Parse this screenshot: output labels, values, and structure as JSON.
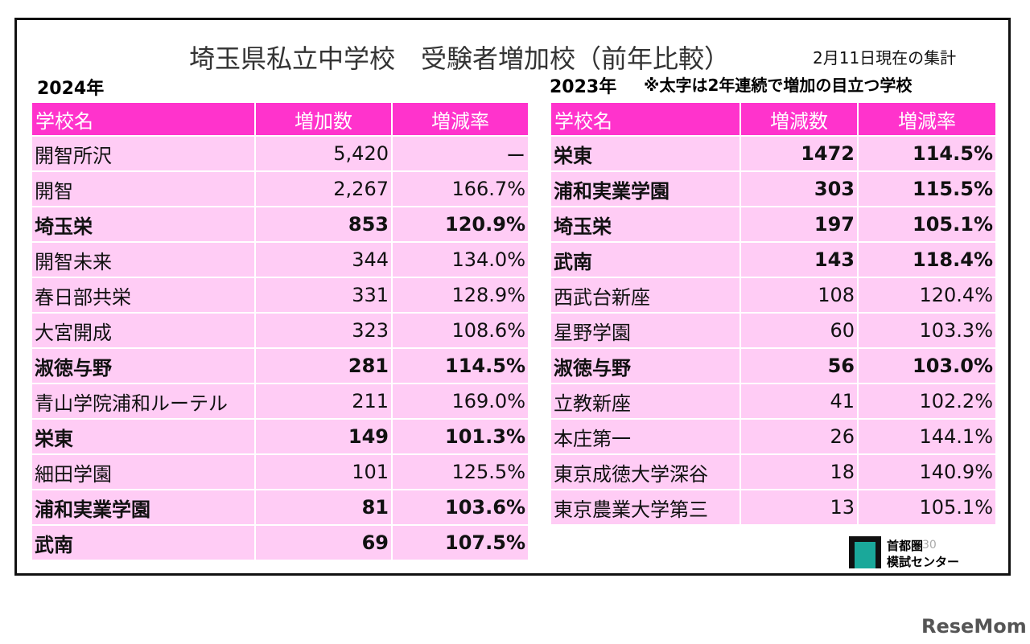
{
  "header": {
    "title": "埼玉県私立中学校　受験者増加校（前年比較）",
    "date_note": "2月11日現在の集計",
    "note": "※太字は2年連続で増加の目立つ学校"
  },
  "left_table": {
    "label": "2024年",
    "headers": [
      "学校名",
      "増加数",
      "増減率"
    ],
    "rows": [
      {
        "cells": [
          "開智所沢",
          "5,420",
          "ー"
        ],
        "bold": false
      },
      {
        "cells": [
          "開智",
          "2,267",
          "166.7%"
        ],
        "bold": false
      },
      {
        "cells": [
          "埼玉栄",
          "853",
          "120.9%"
        ],
        "bold": true
      },
      {
        "cells": [
          "開智未来",
          "344",
          "134.0%"
        ],
        "bold": false
      },
      {
        "cells": [
          "春日部共栄",
          "331",
          "128.9%"
        ],
        "bold": false
      },
      {
        "cells": [
          "大宮開成",
          "323",
          "108.6%"
        ],
        "bold": false
      },
      {
        "cells": [
          "淑徳与野",
          "281",
          "114.5%"
        ],
        "bold": true
      },
      {
        "cells": [
          "青山学院浦和ルーテル",
          "211",
          "169.0%"
        ],
        "bold": false
      },
      {
        "cells": [
          "栄東",
          "149",
          "101.3%"
        ],
        "bold": true
      },
      {
        "cells": [
          "細田学園",
          "101",
          "125.5%"
        ],
        "bold": false
      },
      {
        "cells": [
          "浦和実業学園",
          "81",
          "103.6%"
        ],
        "bold": true
      },
      {
        "cells": [
          "武南",
          "69",
          "107.5%"
        ],
        "bold": true
      }
    ]
  },
  "right_table": {
    "label": "2023年",
    "headers": [
      "学校名",
      "増減数",
      "増減率"
    ],
    "rows": [
      {
        "cells": [
          "栄東",
          "1472",
          "114.5%"
        ],
        "bold": true
      },
      {
        "cells": [
          "浦和実業学園",
          "303",
          "115.5%"
        ],
        "bold": true
      },
      {
        "cells": [
          "埼玉栄",
          "197",
          "105.1%"
        ],
        "bold": true
      },
      {
        "cells": [
          "武南",
          "143",
          "118.4%"
        ],
        "bold": true
      },
      {
        "cells": [
          "西武台新座",
          "108",
          "120.4%"
        ],
        "bold": false
      },
      {
        "cells": [
          "星野学園",
          "60",
          "103.3%"
        ],
        "bold": false
      },
      {
        "cells": [
          "淑徳与野",
          "56",
          "103.0%"
        ],
        "bold": true
      },
      {
        "cells": [
          "立教新座",
          "41",
          "102.2%"
        ],
        "bold": false
      },
      {
        "cells": [
          "本庄第一",
          "26",
          "144.1%"
        ],
        "bold": false
      },
      {
        "cells": [
          "東京成徳大学深谷",
          "18",
          "140.9%"
        ],
        "bold": false
      },
      {
        "cells": [
          "東京農業大学第三",
          "13",
          "105.1%"
        ],
        "bold": false
      }
    ]
  },
  "logo": {
    "line1": "首都圏",
    "line2": "模試センター",
    "badge": "30"
  },
  "watermark": "ReseMom"
}
